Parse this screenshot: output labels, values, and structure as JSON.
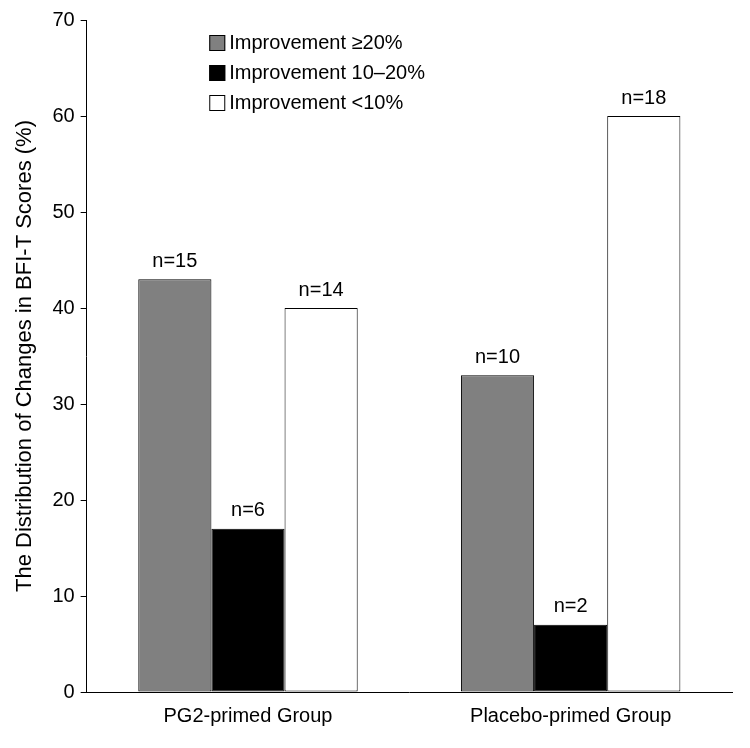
{
  "chart_data": {
    "type": "bar",
    "y_label": "The Distribution of Changes in BFI-T Scores (%)",
    "categories": [
      "PG2-primed Group",
      "Placebo-primed Group"
    ],
    "series": [
      {
        "name": "Improvement ≥20%",
        "color": "#808080",
        "values": [
          43,
          33
        ],
        "annotations": [
          "n=15",
          "n=10"
        ]
      },
      {
        "name": "Improvement 10–20%",
        "color": "#000000",
        "values": [
          17,
          7
        ],
        "annotations": [
          "n=6",
          "n=2"
        ]
      },
      {
        "name": "Improvement <10%",
        "color": "#ffffff",
        "values": [
          40,
          60
        ],
        "annotations": [
          "n=14",
          "n=18"
        ]
      }
    ],
    "ylim": [
      0,
      70
    ],
    "yticks": [
      0,
      10,
      20,
      30,
      40,
      50,
      60,
      70
    ],
    "grid": false,
    "legend": "top"
  }
}
